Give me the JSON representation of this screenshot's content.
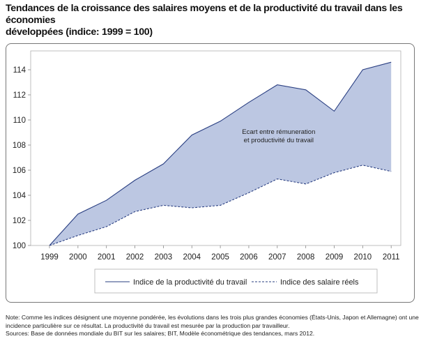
{
  "title_line1": "Tendances de la croissance des salaires moyens et de la productivité du travail dans les économies",
  "title_line2": "développées (indice: 1999 = 100)",
  "chart_data": {
    "type": "area",
    "x": [
      "1999",
      "2000",
      "2001",
      "2002",
      "2003",
      "2004",
      "2005",
      "2006",
      "2007",
      "2008",
      "2009",
      "2010",
      "2011"
    ],
    "series": [
      {
        "name": "Indice de la productivité du travail",
        "style": "solid",
        "values": [
          100.0,
          102.5,
          103.6,
          105.2,
          106.5,
          108.8,
          109.9,
          111.4,
          112.8,
          112.4,
          110.7,
          114.0,
          114.6
        ]
      },
      {
        "name": "Indice des salaire réels",
        "style": "dashed",
        "values": [
          100.0,
          100.8,
          101.5,
          102.7,
          103.2,
          103.0,
          103.2,
          104.2,
          105.3,
          104.9,
          105.8,
          106.4,
          105.9
        ]
      }
    ],
    "yticks": [
      100,
      102,
      104,
      106,
      108,
      110,
      112,
      114
    ],
    "ylim": [
      100,
      115.5
    ],
    "annotation_line1": "Ecart entre rémuneration",
    "annotation_line2": "et productivité du travail",
    "legend_position": "bottom",
    "grid": false,
    "colors": {
      "fill": "#bcc7e2",
      "line": "#2a3f82"
    }
  },
  "note_line1": "Note: Comme les indices désignent une moyenne pondérée, les évolutions dans les trois plus grandes économies (États-Unis, Japon et Allemagne) ont une",
  "note_line2": "incidence particulière sur ce résultat. La productivité du travail est mesurée par la production par travailleur.",
  "sources": "Sources: Base de données mondiale du BIT sur les salaires; BIT, Modèle économétrique des tendances, mars 2012."
}
